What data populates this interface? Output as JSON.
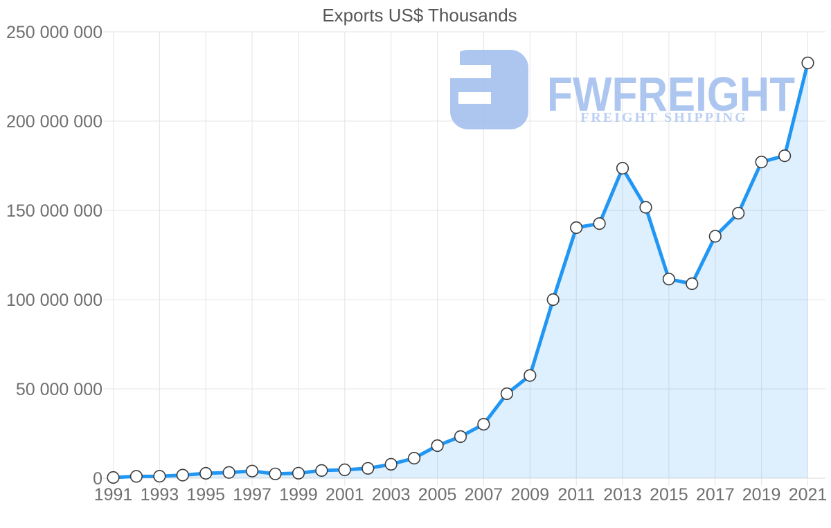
{
  "title": "Exports US$ Thousands",
  "watermark": {
    "brand": "FWFREIGHT",
    "tagline": "FREIGHT SHIPPING",
    "logo_icon": "rounded-square-F-mark",
    "color": "#9fbdee"
  },
  "colors": {
    "line": "#2196f3",
    "area_fill": "rgba(33,150,243,0.15)",
    "marker_fill": "#ffffff",
    "marker_stroke": "#3b3b3b",
    "gridline": "#e4e4e4",
    "tick_text": "#6f6f6f",
    "title_text": "#565656"
  },
  "chart_data": {
    "type": "area",
    "title": "Exports US$ Thousands",
    "xlabel": "",
    "ylabel": "",
    "grid": true,
    "legend": false,
    "marker": "circle-white-outlined",
    "x": [
      1991,
      1992,
      1993,
      1994,
      1995,
      1996,
      1997,
      1998,
      1999,
      2000,
      2001,
      2002,
      2003,
      2004,
      2005,
      2006,
      2007,
      2008,
      2009,
      2010,
      2011,
      2012,
      2013,
      2014,
      2015,
      2016,
      2017,
      2018,
      2019,
      2020,
      2021
    ],
    "values": [
      400000,
      1000000,
      1100000,
      1700000,
      2700000,
      3200000,
      4000000,
      2400000,
      2800000,
      4300000,
      4700000,
      5500000,
      7800000,
      11200000,
      18200000,
      23300000,
      30200000,
      47300000,
      57500000,
      100000000,
      140300000,
      142600000,
      173600000,
      151700000,
      111500000,
      108900000,
      135500000,
      148400000,
      177100000,
      180600000,
      232600000
    ],
    "ylim": [
      0,
      250000000
    ],
    "y_ticks": [
      0,
      50000000,
      100000000,
      150000000,
      200000000,
      250000000
    ],
    "y_tick_labels": [
      "0",
      "50 000 000",
      "100 000 000",
      "150 000 000",
      "200 000 000",
      "250 000 000"
    ],
    "x_tick_labels": [
      "1991",
      "1993",
      "1995",
      "1997",
      "1999",
      "2001",
      "2003",
      "2005",
      "2007",
      "2009",
      "2011",
      "2013",
      "2015",
      "2017",
      "2019",
      "2021"
    ]
  }
}
